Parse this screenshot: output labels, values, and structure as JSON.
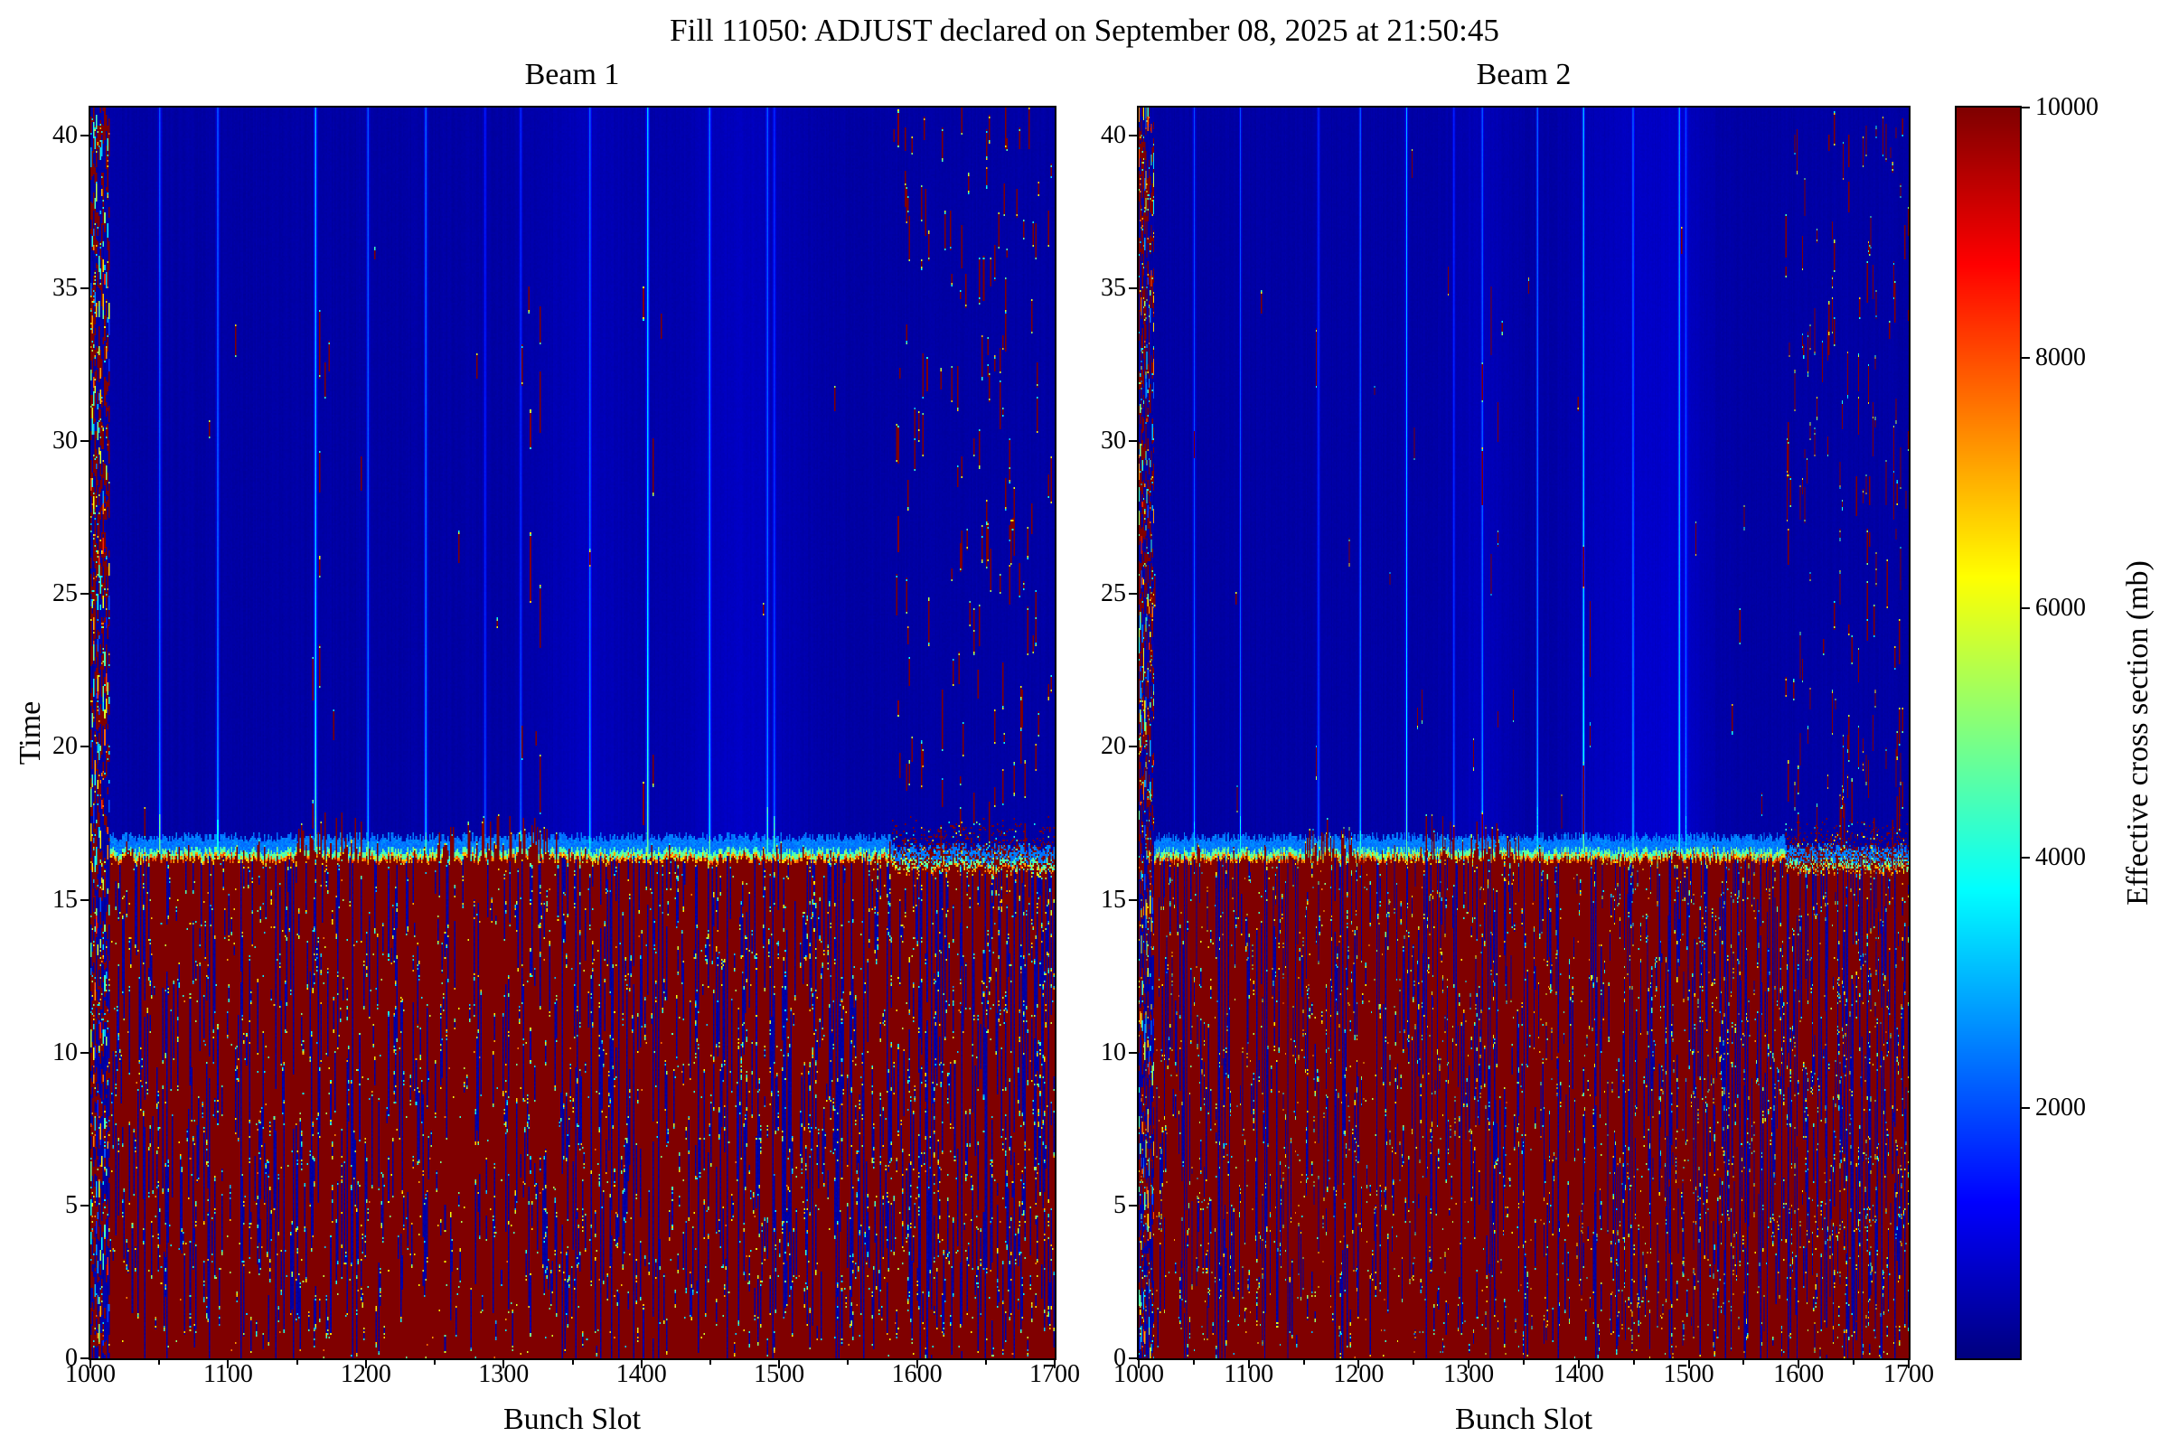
{
  "title": "Fill 11050: ADJUST declared on September 08, 2025 at 21:50:45",
  "chart_data": {
    "type": "heatmap",
    "colormap": "jet",
    "vmin": 0,
    "vmax": 10000,
    "slot_range": [
      1000,
      1700
    ],
    "time_range": [
      0,
      40.91
    ],
    "colorbar": {
      "label": "Effective cross section (mb)",
      "ticks": [
        2000,
        4000,
        6000,
        8000,
        10000
      ]
    },
    "description": "Per-bunch effective cross section vs bunch slot and time for two beams; values saturate at 10000 mb (dark red) below time ~16.3 and drop to ~300-900 mb (dark blue) above it, with brighter blue stripes at specific bunch slots, noisy columns at slots 1000-1013, and sparse saturated red dropouts at high slots.",
    "subplots": [
      {
        "title": "Beam 1",
        "xlabel": "Bunch Slot",
        "ylabel": "Time",
        "xticks": [
          1000,
          1100,
          1200,
          1300,
          1400,
          1500,
          1600,
          1700
        ],
        "yticks": [
          0,
          5,
          10,
          15,
          20,
          25,
          30,
          35,
          40
        ],
        "seed": 987654,
        "transition_time": 16.3,
        "background_value": 260,
        "filled_value": 10000,
        "left_noise_slots": [
          1000,
          1013
        ],
        "speckle_slots": [
          1582,
          1700
        ],
        "stripe_slots": [
          {
            "slot": 1050,
            "peak": 2500
          },
          {
            "slot": 1092,
            "peak": 2350
          },
          {
            "slot": 1163,
            "peak": 3800
          },
          {
            "slot": 1201,
            "peak": 2500
          },
          {
            "slot": 1243,
            "peak": 2700
          },
          {
            "slot": 1286,
            "peak": 1700
          },
          {
            "slot": 1312,
            "peak": 1900
          },
          {
            "slot": 1362,
            "peak": 2500
          },
          {
            "slot": 1404,
            "peak": 3900
          },
          {
            "slot": 1449,
            "peak": 2700
          },
          {
            "slot": 1491,
            "peak": 2300
          },
          {
            "slot": 1496,
            "peak": 1800
          }
        ],
        "wide_bands": [
          {
            "center": 1360,
            "sigma": 22,
            "amp": 260
          },
          {
            "center": 1470,
            "sigma": 30,
            "amp": 330
          }
        ],
        "hot_columns": [
          1161,
          1166,
          1313,
          1319,
          1326,
          1401,
          1408
        ],
        "tower_clusters": [
          [
            1148,
            1196
          ],
          [
            1252,
            1340
          ]
        ]
      },
      {
        "title": "Beam 2",
        "xlabel": "Bunch Slot",
        "ylabel": "Time",
        "xticks": [
          1000,
          1100,
          1200,
          1300,
          1400,
          1500,
          1600,
          1700
        ],
        "yticks": [
          0,
          5,
          10,
          15,
          20,
          25,
          30,
          35,
          40
        ],
        "seed": 246810,
        "transition_time": 16.3,
        "background_value": 260,
        "filled_value": 10000,
        "left_noise_slots": [
          1000,
          1013
        ],
        "speckle_slots": [
          1588,
          1700
        ],
        "stripe_slots": [
          {
            "slot": 1050,
            "peak": 2500
          },
          {
            "slot": 1092,
            "peak": 2450
          },
          {
            "slot": 1163,
            "peak": 2250
          },
          {
            "slot": 1201,
            "peak": 2450
          },
          {
            "slot": 1243,
            "peak": 3800
          },
          {
            "slot": 1286,
            "peak": 1800
          },
          {
            "slot": 1312,
            "peak": 2300
          },
          {
            "slot": 1362,
            "peak": 2600
          },
          {
            "slot": 1404,
            "peak": 3650
          },
          {
            "slot": 1449,
            "peak": 2850
          },
          {
            "slot": 1491,
            "peak": 2900
          },
          {
            "slot": 1497,
            "peak": 2100
          }
        ],
        "wide_bands": [
          {
            "center": 1310,
            "sigma": 20,
            "amp": 230
          },
          {
            "center": 1450,
            "sigma": 35,
            "amp": 380
          },
          {
            "center": 1492,
            "sigma": 14,
            "amp": 300
          }
        ],
        "hot_columns": [
          1161,
          1312,
          1320,
          1326,
          1404,
          1410
        ],
        "tower_clusters": [
          [
            1150,
            1200
          ],
          [
            1255,
            1345
          ]
        ]
      }
    ]
  }
}
